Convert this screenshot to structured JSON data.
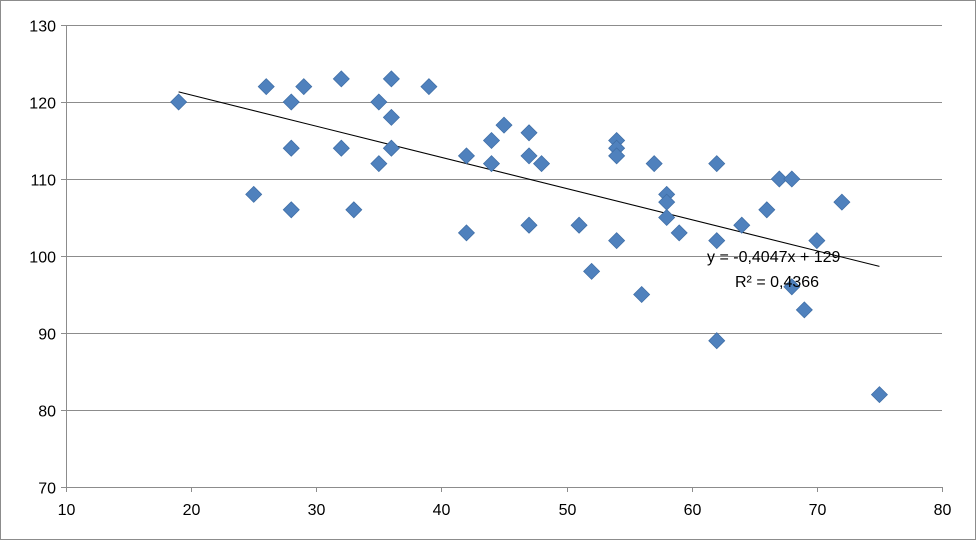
{
  "chart_data": {
    "type": "scatter",
    "title": "",
    "xlabel": "",
    "ylabel": "",
    "xlim": [
      10,
      80
    ],
    "ylim": [
      70,
      130
    ],
    "x_ticks": [
      10,
      20,
      30,
      40,
      50,
      60,
      70,
      80
    ],
    "y_ticks": [
      70,
      80,
      90,
      100,
      110,
      120,
      130
    ],
    "grid": "horizontal",
    "legend": "none",
    "marker": {
      "shape": "diamond",
      "color": "#4F81BD"
    },
    "series": [
      {
        "points": [
          {
            "x": 19,
            "y": 120
          },
          {
            "x": 25,
            "y": 108
          },
          {
            "x": 26,
            "y": 122
          },
          {
            "x": 28,
            "y": 120
          },
          {
            "x": 28,
            "y": 114
          },
          {
            "x": 28,
            "y": 106
          },
          {
            "x": 29,
            "y": 122
          },
          {
            "x": 32,
            "y": 123
          },
          {
            "x": 32,
            "y": 114
          },
          {
            "x": 33,
            "y": 106
          },
          {
            "x": 35,
            "y": 120
          },
          {
            "x": 35,
            "y": 112
          },
          {
            "x": 36,
            "y": 123
          },
          {
            "x": 36,
            "y": 118
          },
          {
            "x": 36,
            "y": 114
          },
          {
            "x": 39,
            "y": 122
          },
          {
            "x": 42,
            "y": 113
          },
          {
            "x": 42,
            "y": 103
          },
          {
            "x": 44,
            "y": 115
          },
          {
            "x": 44,
            "y": 112
          },
          {
            "x": 45,
            "y": 117
          },
          {
            "x": 47,
            "y": 116
          },
          {
            "x": 47,
            "y": 113
          },
          {
            "x": 47,
            "y": 104
          },
          {
            "x": 48,
            "y": 112
          },
          {
            "x": 51,
            "y": 104
          },
          {
            "x": 52,
            "y": 98
          },
          {
            "x": 54,
            "y": 115
          },
          {
            "x": 54,
            "y": 114
          },
          {
            "x": 54,
            "y": 113
          },
          {
            "x": 54,
            "y": 102
          },
          {
            "x": 56,
            "y": 95
          },
          {
            "x": 57,
            "y": 112
          },
          {
            "x": 58,
            "y": 108
          },
          {
            "x": 58,
            "y": 107
          },
          {
            "x": 58,
            "y": 105
          },
          {
            "x": 59,
            "y": 103
          },
          {
            "x": 62,
            "y": 112
          },
          {
            "x": 62,
            "y": 102
          },
          {
            "x": 62,
            "y": 89
          },
          {
            "x": 64,
            "y": 104
          },
          {
            "x": 66,
            "y": 106
          },
          {
            "x": 67,
            "y": 110
          },
          {
            "x": 68,
            "y": 110
          },
          {
            "x": 68,
            "y": 96
          },
          {
            "x": 69,
            "y": 93
          },
          {
            "x": 70,
            "y": 102
          },
          {
            "x": 72,
            "y": 107
          },
          {
            "x": 75,
            "y": 82
          }
        ]
      }
    ],
    "trendline": {
      "slope": -0.4047,
      "intercept": 129,
      "x_range": [
        19,
        75
      ],
      "color": "#000000",
      "equation": "y = -0,4047x + 129",
      "r_squared": "R² = 0,4366"
    }
  }
}
